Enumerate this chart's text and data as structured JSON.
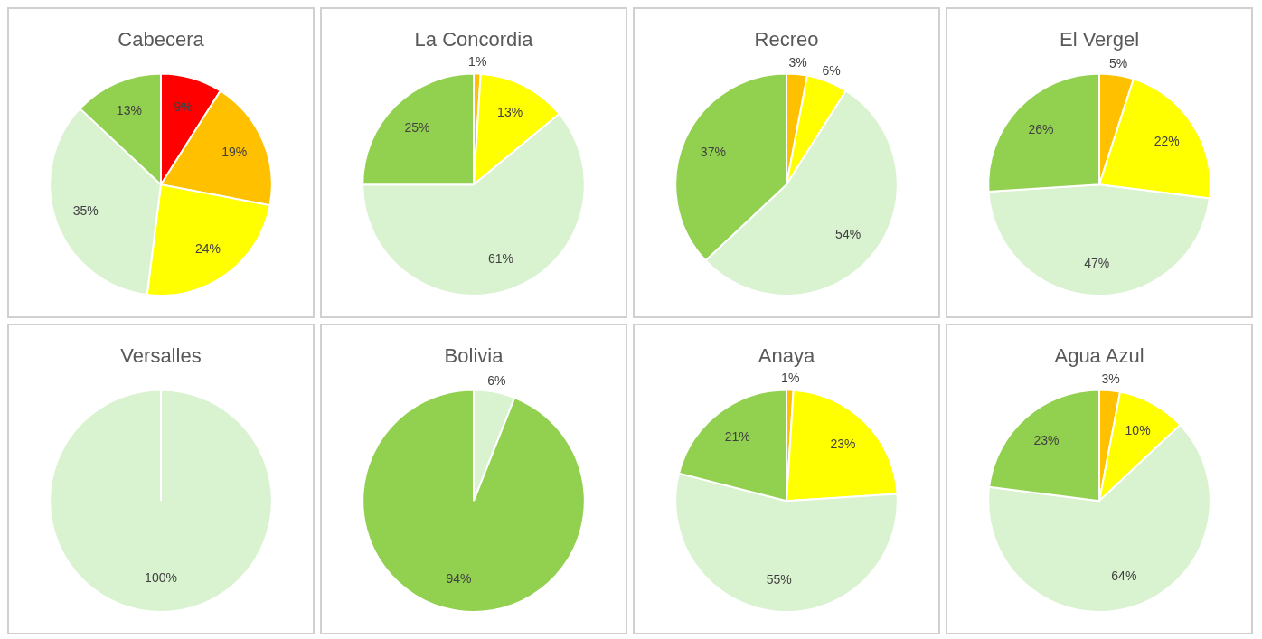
{
  "chart_data": [
    {
      "type": "pie",
      "title": "Cabecera",
      "categories": [
        null,
        null,
        null,
        null,
        null
      ],
      "values": [
        9,
        19,
        24,
        35,
        13
      ],
      "colors": [
        "#ff0000",
        "#ffc000",
        "#ffff00",
        "#d9f2d0",
        "#92d050"
      ],
      "value_labels": [
        "9%",
        "19%",
        "24%",
        "35%",
        "13%"
      ]
    },
    {
      "type": "pie",
      "title": "La Concordia",
      "categories": [
        null,
        null,
        null,
        null
      ],
      "values": [
        1,
        13,
        61,
        25
      ],
      "colors": [
        "#ffc000",
        "#ffff00",
        "#d9f2d0",
        "#92d050"
      ],
      "value_labels": [
        "1%",
        "13%",
        "61%",
        "25%"
      ]
    },
    {
      "type": "pie",
      "title": "Recreo",
      "categories": [
        null,
        null,
        null,
        null
      ],
      "values": [
        3,
        6,
        54,
        37
      ],
      "colors": [
        "#ffc000",
        "#ffff00",
        "#d9f2d0",
        "#92d050"
      ],
      "value_labels": [
        "3%",
        "6%",
        "54%",
        "37%"
      ]
    },
    {
      "type": "pie",
      "title": "El Vergel",
      "categories": [
        null,
        null,
        null,
        null
      ],
      "values": [
        5,
        22,
        47,
        26
      ],
      "colors": [
        "#ffc000",
        "#ffff00",
        "#d9f2d0",
        "#92d050"
      ],
      "value_labels": [
        "5%",
        "22%",
        "47%",
        "26%"
      ]
    },
    {
      "type": "pie",
      "title": "Versalles",
      "categories": [
        null
      ],
      "values": [
        100
      ],
      "colors": [
        "#d9f2d0"
      ],
      "value_labels": [
        "100%"
      ]
    },
    {
      "type": "pie",
      "title": "Bolivia",
      "categories": [
        null,
        null
      ],
      "values": [
        6,
        94
      ],
      "colors": [
        "#d9f2d0",
        "#92d050"
      ],
      "value_labels": [
        "6%",
        "94%"
      ]
    },
    {
      "type": "pie",
      "title": "Anaya",
      "categories": [
        null,
        null,
        null,
        null
      ],
      "values": [
        1,
        23,
        55,
        21
      ],
      "colors": [
        "#ffc000",
        "#ffff00",
        "#d9f2d0",
        "#92d050"
      ],
      "value_labels": [
        "1%",
        "23%",
        "55%",
        "21%"
      ]
    },
    {
      "type": "pie",
      "title": "Agua Azul",
      "categories": [
        null,
        null,
        null,
        null
      ],
      "values": [
        3,
        10,
        64,
        23
      ],
      "colors": [
        "#ffc000",
        "#ffff00",
        "#d9f2d0",
        "#92d050"
      ],
      "value_labels": [
        "3%",
        "10%",
        "64%",
        "23%"
      ]
    }
  ]
}
